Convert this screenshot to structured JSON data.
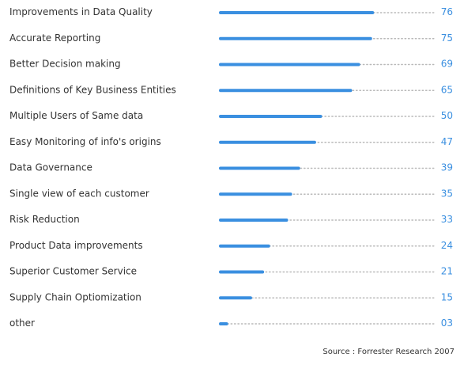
{
  "chart_data": {
    "type": "bar",
    "orientation": "horizontal",
    "categories": [
      "Improvements in Data Quality",
      "Accurate Reporting",
      "Better Decision making",
      "Definitions of Key Business Entities",
      "Multiple Users of Same data",
      "Easy Monitoring of info's origins",
      "Data Governance",
      "Single view of each customer",
      "Risk Reduction",
      "Product Data improvements",
      "Superior Customer Service",
      "Supply Chain Optiomization",
      "other"
    ],
    "values": [
      76,
      75,
      69,
      65,
      50,
      47,
      39,
      35,
      33,
      24,
      21,
      15,
      3
    ],
    "value_labels": [
      "76",
      "75",
      "69",
      "65",
      "50",
      "47",
      "39",
      "35",
      "33",
      "24",
      "21",
      "15",
      "03"
    ],
    "xlim": [
      0,
      100
    ],
    "grid": false,
    "legend": "none",
    "source": "Source : Forrester Research 2007",
    "colors": {
      "bar": "#3a8fe0",
      "value_text": "#3a8fe0",
      "label_text": "#333333",
      "track": "#b9b9b9"
    }
  }
}
